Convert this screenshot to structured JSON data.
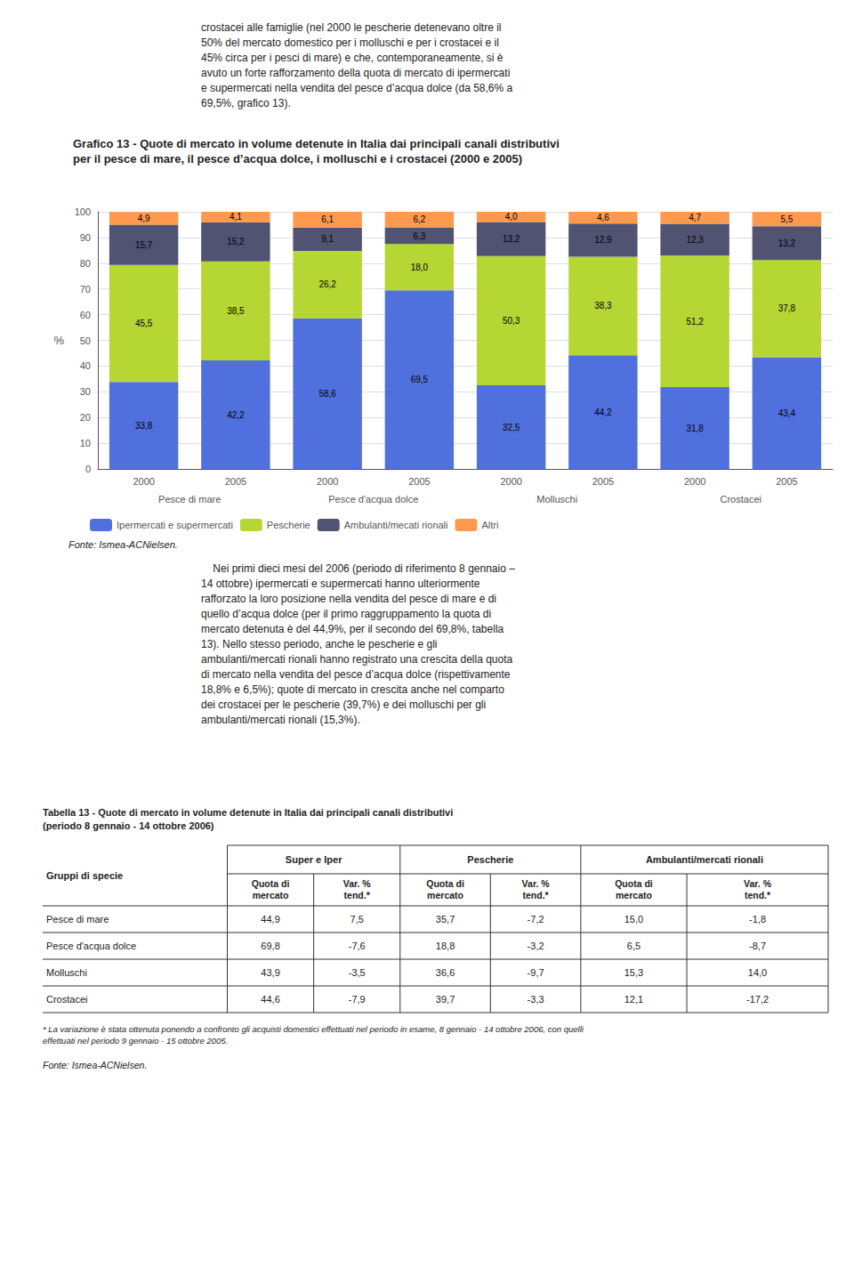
{
  "chart_data": {
    "type": "bar",
    "title": "Grafico 13 - Quote di mercato in volume detenute in Italia dai principali canali distributivi",
    "subtitle": "per il pesce di mare, il pesce d’acqua dolce, i molluschi e i crostacei (2000 e 2005)",
    "ylabel": "%",
    "categories": [
      "2000",
      "2005",
      "2000",
      "2005",
      "2000",
      "2005",
      "2000",
      "2005"
    ],
    "category_groups": [
      "Pesce di mare",
      "Pesce d'acqua dolce",
      "Molluschi",
      "Crostacei"
    ],
    "series": [
      {
        "name": "Ipermercati e supermercati",
        "values": [
          33.8,
          42.2,
          58.6,
          69.5,
          32.5,
          44.2,
          31.8,
          43.4
        ],
        "value_labels": [
          "33,8",
          "42,2",
          "58,6",
          "69,5",
          "32,5",
          "44,2",
          "31,8",
          "43,4"
        ]
      },
      {
        "name": "Pescherie",
        "values": [
          45.5,
          38.5,
          26.2,
          18.0,
          50.3,
          38.3,
          51.2,
          37.8
        ],
        "value_labels": [
          "45,5",
          "38,5",
          "26,2",
          "18,0",
          "50,3",
          "38,3",
          "51,2",
          "37,8"
        ]
      },
      {
        "name": "Ambulanti/mecati rionali",
        "values": [
          15.7,
          15.2,
          9.1,
          6.3,
          13.2,
          12.9,
          12.3,
          13.2
        ],
        "value_labels": [
          "15,7",
          "15,2",
          "9,1",
          "6,3",
          "13,2",
          "12,9",
          "12,3",
          "13,2"
        ]
      },
      {
        "name": "Altri",
        "values": [
          4.9,
          4.1,
          6.1,
          6.2,
          4.0,
          4.6,
          4.7,
          5.5
        ],
        "value_labels": [
          "4,9",
          "4,1",
          "6,1",
          "6,2",
          "4,0",
          "4,6",
          "4,7",
          "5,5"
        ]
      }
    ],
    "ylim": [
      0,
      100
    ],
    "yticks": [
      0,
      10,
      20,
      30,
      40,
      50,
      60,
      70,
      80,
      90,
      100
    ],
    "grid": true,
    "stacked": true,
    "data_labels": true,
    "legend": "bottom",
    "source": "Fonte: Ismea-ACNielsen."
  },
  "text_above": "crostacei alle famiglie (nel 2000 le pescherie detenevano oltre il\n50% del mercato domestico per i molluschi e per i crostacei e il\n45% circa per i pesci di mare) e che, contemporaneamente, si è\navuto un forte rafforzamento della quota di mercato di ipermercati\ne supermercati nella vendita del pesce d’acqua dolce (da 58,6% a\n69,5%, grafico 13).",
  "text_below": "    Nei primi dieci mesi del 2006 (periodo di riferimento 8 gennaio –\n14 ottobre) ipermercati e supermercati hanno ulteriormente\nrafforzato la loro posizione nella vendita del pesce di mare e di\nquello d’acqua dolce (per il primo raggruppamento la quota di\nmercato detenuta è del 44,9%, per il secondo del 69,8%, tabella\n13). Nello stesso periodo, anche le pescherie e gli\nambulanti/mercati rionali hanno registrato una crescita della quota\ndi mercato nella vendita del pesce d’acqua dolce (rispettivamente\n18,8% e 6,5%); quote di mercato in crescita anche nel comparto\ndei crostacei per le pescherie (39,7%) e dei molluschi per gli\nambulanti/mercati rionali (15,3%).",
  "table": {
    "title": "Tabella 13 - Quote di mercato in volume detenute in Italia dai principali canali distributivi\n(periodo 8 gennaio - 14 ottobre 2006)",
    "column_groups": [
      "Super e Iper",
      "Pescherie",
      "Ambulanti/mercati rionali"
    ],
    "columns": [
      "Gruppi di specie",
      "Quota di\nmercato",
      "Var. %\ntend.*",
      "Quota di\nmercato",
      "Var. %\ntend.*",
      "Quota di\nmercato",
      "Var. %\ntend.*"
    ],
    "rows": [
      [
        "Pesce di mare",
        "44,9",
        "7,5",
        "35,7",
        "-7,2",
        "15,0",
        "-1,8"
      ],
      [
        "Pesce d'acqua dolce",
        "69,8",
        "-7,6",
        "18,8",
        "-3,2",
        "6,5",
        "-8,7"
      ],
      [
        "Molluschi",
        "43,9",
        "-3,5",
        "36,6",
        "-9,7",
        "15,3",
        "14,0"
      ],
      [
        "Crostacei",
        "44,6",
        "-7,9",
        "39,7",
        "-3,3",
        "12,1",
        "-17,2"
      ]
    ],
    "note": "* La variazione è stata ottenuta ponendo a confronto gli acquisti domestici effettuati nel periodo in esame, 8 gennaio - 14 ottobre 2006, con quelli\neffettuati nel periodo 9 gennaio - 15 ottobre 2005.",
    "source": "Fonte: Ismea-ACNielsen."
  }
}
